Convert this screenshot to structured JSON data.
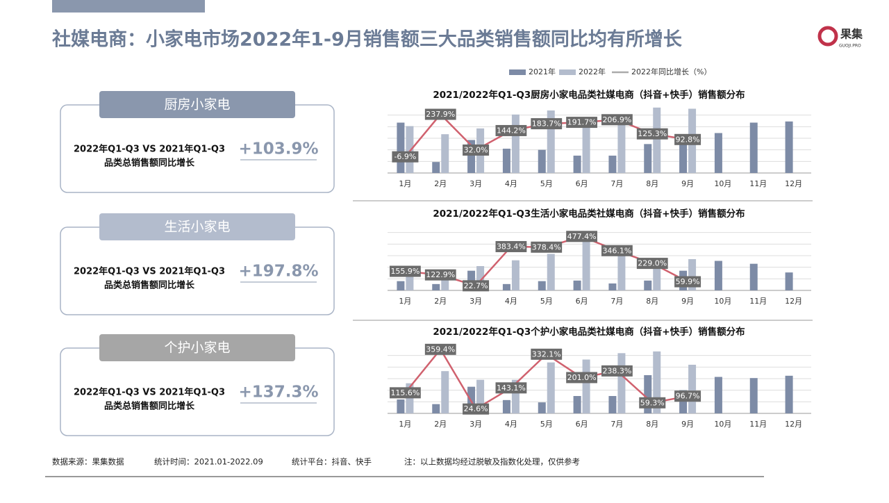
{
  "header": {
    "title": "社媒电商：小家电市场2022年1-9月销售额三大品类销售额同比均有所增长",
    "logo": "果集",
    "logo_sub": "GUOJI.PRO"
  },
  "panels": [
    {
      "tab": "厨房小家电",
      "line1": "2022年Q1-Q3 VS 2021年Q1-Q3",
      "line2": "品类总销售额同比增长",
      "value": "+103.9%"
    },
    {
      "tab": "生活小家电",
      "line1": "2022年Q1-Q3 VS 2021年Q1-Q3",
      "line2": "品类总销售额同比增长",
      "value": "+197.8%"
    },
    {
      "tab": "个护小家电",
      "line1": "2022年Q1-Q3 VS 2021年Q1-Q3",
      "line2": "品类总销售额同比增长",
      "value": "+137.3%"
    }
  ],
  "footer": [
    "数据来源：果集数据",
    "统计时间：2021.01-2022.09",
    "统计平台：抖音、快手",
    "注：以上数据均经过脱敏及指数化处理，仅供参考"
  ],
  "chart_data": [
    {
      "type": "bar",
      "title": "2021/2022年Q1-Q3厨房小家电品类社媒电商（抖音+快手）销售额分布",
      "categories": [
        "1月",
        "2月",
        "3月",
        "4月",
        "5月",
        "6月",
        "7月",
        "8月",
        "9月",
        "10月",
        "11月",
        "12月"
      ],
      "ylim": [
        0,
        120
      ],
      "yticks": [
        0,
        20,
        40,
        60,
        80,
        100
      ],
      "grid": true,
      "y2lim": [
        -100,
        300
      ],
      "series": [
        {
          "name": "2021年",
          "color": "#7d8ba6",
          "values": [
            87,
            19,
            57,
            42,
            40,
            30,
            30,
            50,
            53,
            69,
            87,
            89
          ]
        },
        {
          "name": "2022年",
          "color": "#b3bccd",
          "values": [
            81,
            67,
            77,
            101,
            108,
            93,
            89,
            113,
            111,
            null,
            null,
            null
          ]
        },
        {
          "name": "2022年同比增长（%）",
          "type": "line",
          "axis": "y2",
          "color": "#d0616e",
          "values": [
            -6.9,
            237.9,
            32.0,
            144.2,
            183.7,
            191.7,
            206.9,
            125.3,
            92.8,
            null,
            null,
            null
          ],
          "value_labels": [
            "-6.9%",
            "237.9%",
            "32.0%",
            "144.2%",
            "183.7%",
            "191.7%",
            "206.9%",
            "125.3%",
            "92.8%",
            null,
            null,
            null
          ]
        }
      ]
    },
    {
      "type": "bar",
      "title": "2021/2022年Q1-Q3生活小家电品类社媒电商（抖音+快手）销售额分布",
      "categories": [
        "1月",
        "2月",
        "3月",
        "4月",
        "5月",
        "6月",
        "7月",
        "8月",
        "9月",
        "10月",
        "11月",
        "12月"
      ],
      "ylim": [
        0,
        120
      ],
      "yticks": [
        0,
        20,
        40,
        60,
        80,
        100
      ],
      "grid": true,
      "y2lim": [
        -20,
        620
      ],
      "series": [
        {
          "color": "#7d8ba6",
          "values": [
            16,
            11,
            34,
            11,
            16,
            17,
            12,
            17,
            34,
            51,
            46,
            31
          ]
        },
        {
          "color": "#b3bccd",
          "values": [
            28,
            25,
            42,
            52,
            63,
            90,
            75,
            55,
            54,
            null,
            null,
            null
          ]
        },
        {
          "type": "line",
          "axis": "y2",
          "color": "#d0616e",
          "values": [
            155.9,
            122.9,
            22.7,
            383.4,
            378.4,
            477.4,
            346.1,
            229.0,
            59.9,
            null,
            null,
            null
          ],
          "value_labels": [
            "155.9%",
            "122.9%",
            "22.7%",
            "383.4%",
            "378.4%",
            "477.4%",
            "346.1%",
            "229.0%",
            "59.9%",
            null,
            null,
            null
          ]
        }
      ]
    },
    {
      "type": "bar",
      "title": "2021/2022年Q1-Q3个护小家电品类社媒电商（抖音+快手）销售额分布",
      "categories": [
        "1月",
        "2月",
        "3月",
        "4月",
        "5月",
        "6月",
        "7月",
        "8月",
        "9月",
        "10月",
        "11月",
        "12月"
      ],
      "ylim": [
        0,
        120
      ],
      "yticks": [
        0,
        20,
        40,
        60,
        80,
        100
      ],
      "grid": true,
      "y2lim": [
        0,
        390
      ],
      "series": [
        {
          "color": "#7d8ba6",
          "values": [
            24,
            16,
            46,
            23,
            19,
            30,
            30,
            66,
            40,
            63,
            61,
            65
          ]
        },
        {
          "color": "#b3bccd",
          "values": [
            52,
            73,
            58,
            58,
            88,
            93,
            104,
            107,
            84,
            null,
            null,
            null
          ]
        },
        {
          "type": "line",
          "axis": "y2",
          "color": "#d0616e",
          "values": [
            115.6,
            359.4,
            24.6,
            143.1,
            332.1,
            201.0,
            238.3,
            59.3,
            96.7,
            null,
            null,
            null
          ],
          "value_labels": [
            "115.6%",
            "359.4%",
            "24.6%",
            "143.1%",
            "332.1%",
            "201.0%",
            "238.3%",
            "59.3%",
            "96.7%",
            null,
            null,
            null
          ]
        }
      ]
    }
  ]
}
